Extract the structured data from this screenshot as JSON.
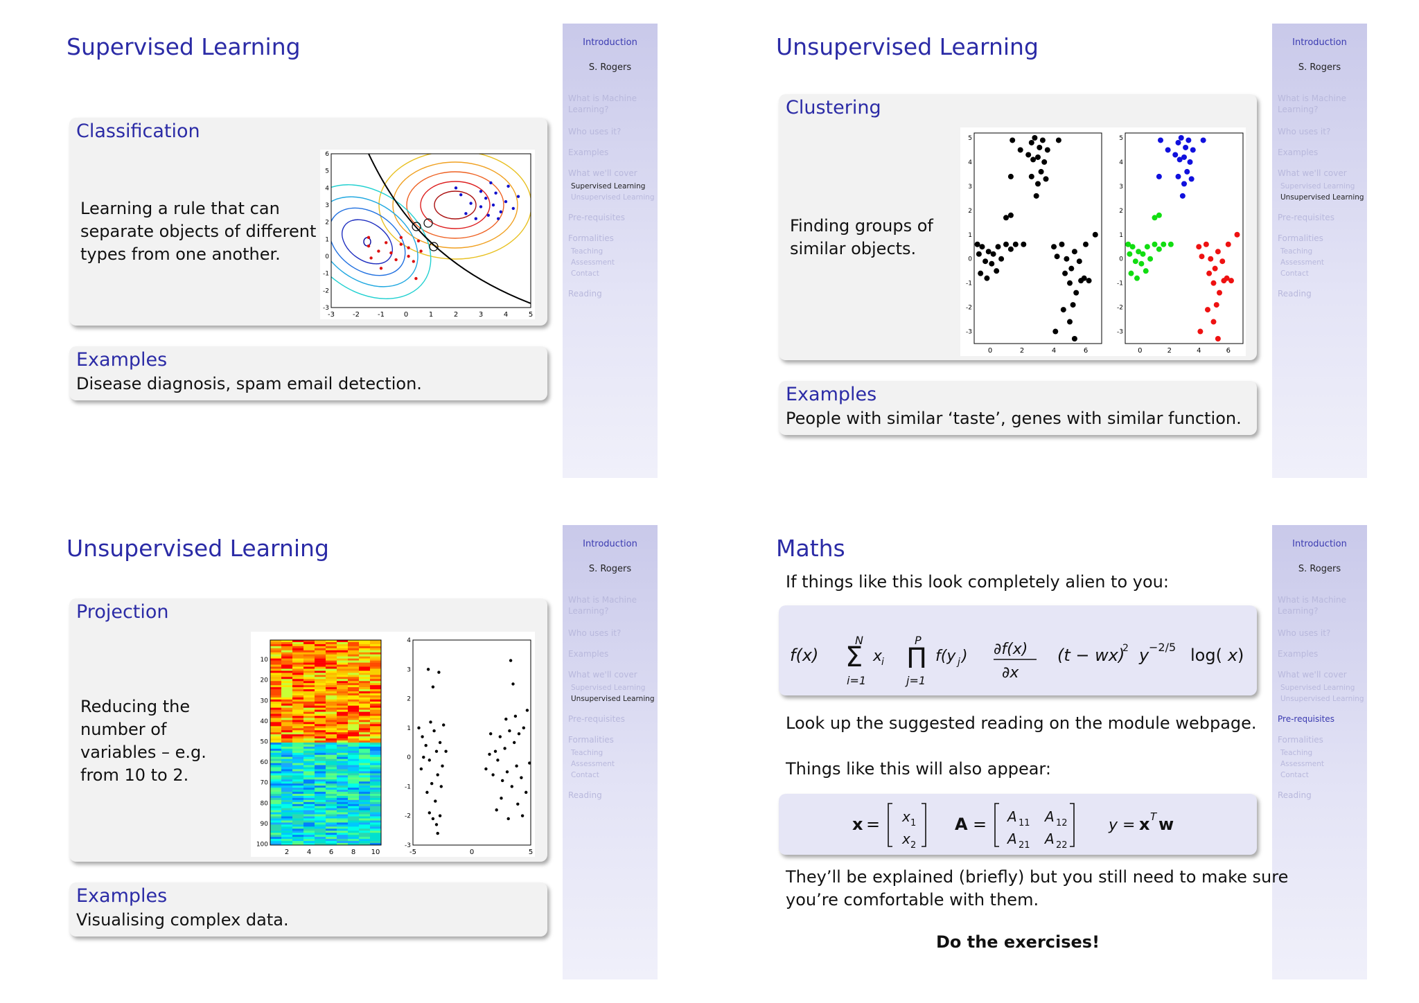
{
  "sidebar": {
    "intro": "Introduction",
    "author": "S. Rogers",
    "items": [
      "What is Machine Learning?",
      "Who uses it?",
      "Examples",
      "What we'll cover",
      "Pre-requisites",
      "Formalities",
      "Reading"
    ],
    "cover_subs": [
      "Supervised Learning",
      "Unsupervised Learning"
    ],
    "formal_subs": [
      "Teaching",
      "Assessment",
      "Contact"
    ]
  },
  "slide1": {
    "title": "Supervised Learning",
    "block_title": "Classification",
    "body_lines": [
      "Learning a rule that can",
      "separate objects of different",
      "types from one another."
    ],
    "examples_title": "Examples",
    "examples_text": "Disease diagnosis, spam email detection."
  },
  "slide2": {
    "title": "Unsupervised Learning",
    "block_title": "Clustering",
    "body_lines": [
      "Finding groups of",
      "similar objects."
    ],
    "examples_title": "Examples",
    "examples_text": "People with similar ‘taste’, genes with similar function."
  },
  "slide3": {
    "title": "Unsupervised Learning",
    "block_title": "Projection",
    "body_lines": [
      "Reducing the",
      "number of",
      "variables – e.g.",
      "from 10 to 2."
    ],
    "examples_title": "Examples",
    "examples_text": "Visualising complex data."
  },
  "slide4": {
    "title": "Maths",
    "intro": "If things like this look completely alien to you:",
    "lookup": "Look up the suggested reading on the module webpage.",
    "appear": "Things like this will also appear:",
    "explain_lines": [
      "They’ll be explained (briefly) but you still need to make sure",
      "you’re comfortable with them."
    ],
    "exercises": "Do the exercises!"
  },
  "chart_data": [
    {
      "type": "scatter",
      "xlim": [
        -3,
        5
      ],
      "ylim": [
        -3,
        6
      ],
      "xticks": [
        -3,
        -2,
        -1,
        0,
        1,
        2,
        3,
        4,
        5
      ],
      "yticks": [
        -3,
        -2,
        -1,
        0,
        1,
        2,
        3,
        4,
        5,
        6
      ],
      "series": [
        {
          "color": "#dd1111",
          "points": [
            [
              -1.5,
              1.1
            ],
            [
              -1.5,
              0.6
            ],
            [
              -1.4,
              -0.1
            ],
            [
              -1.1,
              0.3
            ],
            [
              -0.8,
              0.8
            ],
            [
              -0.6,
              0.2
            ],
            [
              -0.4,
              -0.2
            ],
            [
              -0.2,
              0.7
            ],
            [
              -0.2,
              1.1
            ],
            [
              0.1,
              0.5
            ],
            [
              0.1,
              0.0
            ],
            [
              0.3,
              -0.3
            ],
            [
              0.5,
              0.9
            ],
            [
              -1.0,
              -0.7
            ],
            [
              0.4,
              -1.3
            ],
            [
              0.6,
              0.3
            ]
          ]
        },
        {
          "color": "#1111cc",
          "points": [
            [
              2.2,
              3.6
            ],
            [
              2.4,
              2.5
            ],
            [
              2.6,
              3.1
            ],
            [
              2.8,
              2.2
            ],
            [
              3.0,
              3.8
            ],
            [
              3.0,
              2.9
            ],
            [
              3.2,
              3.4
            ],
            [
              3.3,
              2.4
            ],
            [
              3.4,
              4.3
            ],
            [
              3.5,
              3.0
            ],
            [
              3.6,
              3.7
            ],
            [
              3.8,
              2.6
            ],
            [
              4.0,
              3.2
            ],
            [
              4.1,
              4.1
            ],
            [
              4.3,
              2.8
            ],
            [
              4.5,
              3.5
            ],
            [
              2.0,
              4.0
            ],
            [
              3.7,
              2.2
            ]
          ]
        }
      ]
    },
    {
      "type": "scatter",
      "xlim": [
        -1,
        7
      ],
      "ylim": [
        -3.5,
        5.2
      ],
      "xticks": [
        0,
        2,
        4,
        6
      ],
      "yticks": [
        -3,
        -2,
        -1,
        0,
        1,
        2,
        3,
        4,
        5
      ],
      "series": [
        {
          "color": "#000000",
          "points": [
            [
              1.4,
              4.9
            ],
            [
              2.6,
              4.8
            ],
            [
              2.8,
              5.0
            ],
            [
              3.1,
              4.6
            ],
            [
              3.3,
              4.9
            ],
            [
              3.6,
              4.5
            ],
            [
              2.4,
              4.3
            ],
            [
              2.7,
              4.1
            ],
            [
              3.0,
              4.2
            ],
            [
              3.4,
              4.0
            ],
            [
              3.2,
              3.6
            ],
            [
              2.6,
              3.4
            ],
            [
              3.0,
              3.1
            ],
            [
              3.5,
              3.3
            ],
            [
              2.9,
              2.6
            ],
            [
              1.3,
              3.4
            ],
            [
              1.9,
              4.5
            ],
            [
              4.3,
              4.9
            ],
            [
              1.0,
              1.7
            ],
            [
              1.3,
              1.8
            ],
            [
              -0.8,
              0.6
            ],
            [
              -0.7,
              0.2
            ],
            [
              -0.5,
              0.5
            ],
            [
              -0.3,
              -0.1
            ],
            [
              -0.1,
              0.3
            ],
            [
              0.1,
              -0.2
            ],
            [
              0.2,
              0.2
            ],
            [
              0.5,
              0.5
            ],
            [
              0.7,
              0.0
            ],
            [
              1.0,
              0.6
            ],
            [
              1.3,
              0.4
            ],
            [
              1.6,
              0.6
            ],
            [
              2.1,
              0.6
            ],
            [
              -0.6,
              -0.6
            ],
            [
              -0.2,
              -0.8
            ],
            [
              0.4,
              -0.5
            ],
            [
              4.0,
              0.5
            ],
            [
              4.2,
              0.1
            ],
            [
              4.5,
              0.6
            ],
            [
              4.8,
              0.0
            ],
            [
              5.1,
              -0.4
            ],
            [
              5.3,
              0.3
            ],
            [
              5.6,
              -0.1
            ],
            [
              6.0,
              0.6
            ],
            [
              5.9,
              -0.8
            ],
            [
              4.7,
              -0.6
            ],
            [
              5.0,
              -1.0
            ],
            [
              5.4,
              -1.4
            ],
            [
              5.7,
              -0.9
            ],
            [
              5.2,
              -1.9
            ],
            [
              4.6,
              -2.1
            ],
            [
              5.0,
              -2.6
            ],
            [
              5.3,
              -3.3
            ],
            [
              4.1,
              -3.0
            ],
            [
              6.2,
              -0.9
            ],
            [
              6.6,
              1.0
            ]
          ]
        }
      ]
    },
    {
      "type": "scatter",
      "xlim": [
        -1,
        7
      ],
      "ylim": [
        -3.5,
        5.2
      ],
      "xticks": [
        0,
        2,
        4,
        6
      ],
      "yticks": [
        -3,
        -2,
        -1,
        0,
        1,
        2,
        3,
        4,
        5
      ],
      "series": [
        {
          "color": "#1010dd",
          "points": [
            [
              1.4,
              4.9
            ],
            [
              2.6,
              4.8
            ],
            [
              2.8,
              5.0
            ],
            [
              3.1,
              4.6
            ],
            [
              3.3,
              4.9
            ],
            [
              3.6,
              4.5
            ],
            [
              2.4,
              4.3
            ],
            [
              2.7,
              4.1
            ],
            [
              3.0,
              4.2
            ],
            [
              3.4,
              4.0
            ],
            [
              3.2,
              3.6
            ],
            [
              2.6,
              3.4
            ],
            [
              3.0,
              3.1
            ],
            [
              3.5,
              3.3
            ],
            [
              2.9,
              2.6
            ],
            [
              1.3,
              3.4
            ],
            [
              1.9,
              4.5
            ],
            [
              4.3,
              4.9
            ]
          ]
        },
        {
          "color": "#11dd11",
          "points": [
            [
              1.0,
              1.7
            ],
            [
              1.3,
              1.8
            ],
            [
              -0.8,
              0.6
            ],
            [
              -0.7,
              0.2
            ],
            [
              -0.5,
              0.5
            ],
            [
              -0.3,
              -0.1
            ],
            [
              -0.1,
              0.3
            ],
            [
              0.1,
              -0.2
            ],
            [
              0.2,
              0.2
            ],
            [
              0.5,
              0.5
            ],
            [
              0.7,
              0.0
            ],
            [
              1.0,
              0.6
            ],
            [
              1.3,
              0.4
            ],
            [
              1.6,
              0.6
            ],
            [
              2.1,
              0.6
            ],
            [
              -0.6,
              -0.6
            ],
            [
              -0.2,
              -0.8
            ],
            [
              0.4,
              -0.5
            ]
          ]
        },
        {
          "color": "#ee1111",
          "points": [
            [
              4.0,
              0.5
            ],
            [
              4.2,
              0.1
            ],
            [
              4.5,
              0.6
            ],
            [
              4.8,
              0.0
            ],
            [
              5.1,
              -0.4
            ],
            [
              5.3,
              0.3
            ],
            [
              5.6,
              -0.1
            ],
            [
              6.0,
              0.6
            ],
            [
              5.9,
              -0.8
            ],
            [
              4.7,
              -0.6
            ],
            [
              5.0,
              -1.0
            ],
            [
              5.4,
              -1.4
            ],
            [
              5.7,
              -0.9
            ],
            [
              5.2,
              -1.9
            ],
            [
              4.6,
              -2.1
            ],
            [
              5.0,
              -2.6
            ],
            [
              5.3,
              -3.3
            ],
            [
              4.1,
              -3.0
            ],
            [
              6.2,
              -0.9
            ],
            [
              6.6,
              1.0
            ]
          ]
        }
      ]
    },
    {
      "type": "heatmap",
      "xticks": [
        2,
        4,
        6,
        8,
        10
      ],
      "yticks": [
        10,
        20,
        30,
        40,
        50,
        60,
        70,
        80,
        90,
        100
      ],
      "rows": 100,
      "cols": 10,
      "row_groups": [
        {
          "from": 1,
          "to": 50,
          "level": "high"
        },
        {
          "from": 51,
          "to": 100,
          "level": "low"
        }
      ]
    },
    {
      "type": "scatter",
      "xlim": [
        -5,
        5
      ],
      "ylim": [
        -3,
        4
      ],
      "xticks": [
        -5,
        0,
        5
      ],
      "yticks": [
        -3,
        -2,
        -1,
        0,
        1,
        2,
        3,
        4
      ],
      "series": [
        {
          "color": "#000000",
          "points": [
            [
              -3.7,
              3.0
            ],
            [
              -2.8,
              2.9
            ],
            [
              -3.3,
              2.4
            ],
            [
              -4.5,
              1.0
            ],
            [
              -4.2,
              0.7
            ],
            [
              -3.9,
              0.4
            ],
            [
              -3.6,
              -0.1
            ],
            [
              -3.5,
              1.2
            ],
            [
              -3.2,
              0.9
            ],
            [
              -3.0,
              0.2
            ],
            [
              -2.7,
              0.5
            ],
            [
              -2.5,
              -0.3
            ],
            [
              -2.9,
              -0.6
            ],
            [
              -3.4,
              -0.9
            ],
            [
              -3.8,
              -1.2
            ],
            [
              -2.6,
              -1.0
            ],
            [
              -3.1,
              -1.5
            ],
            [
              -3.6,
              -1.9
            ],
            [
              -3.0,
              -2.3
            ],
            [
              -2.7,
              -2.0
            ],
            [
              -2.9,
              -2.6
            ],
            [
              -4.1,
              0.0
            ],
            [
              -2.4,
              1.1
            ],
            [
              -2.2,
              0.2
            ],
            [
              -4.3,
              -0.4
            ],
            [
              -3.3,
              -2.1
            ],
            [
              3.3,
              3.3
            ],
            [
              3.5,
              2.5
            ],
            [
              4.7,
              1.6
            ],
            [
              4.4,
              1.0
            ],
            [
              4.0,
              0.8
            ],
            [
              3.6,
              0.5
            ],
            [
              3.2,
              0.9
            ],
            [
              2.8,
              0.3
            ],
            [
              2.4,
              0.7
            ],
            [
              2.0,
              0.2
            ],
            [
              1.6,
              0.8
            ],
            [
              1.2,
              -0.4
            ],
            [
              1.8,
              -0.6
            ],
            [
              2.2,
              -0.1
            ],
            [
              2.6,
              -0.8
            ],
            [
              3.0,
              -0.5
            ],
            [
              3.4,
              -1.0
            ],
            [
              3.8,
              -0.3
            ],
            [
              4.2,
              -0.7
            ],
            [
              4.6,
              -1.2
            ],
            [
              3.9,
              -1.6
            ],
            [
              4.3,
              -2.0
            ],
            [
              2.5,
              -1.4
            ],
            [
              2.1,
              -1.8
            ],
            [
              3.1,
              -2.1
            ],
            [
              4.9,
              -0.2
            ],
            [
              1.5,
              0.1
            ],
            [
              2.9,
              1.3
            ],
            [
              3.7,
              1.4
            ]
          ]
        }
      ]
    }
  ]
}
